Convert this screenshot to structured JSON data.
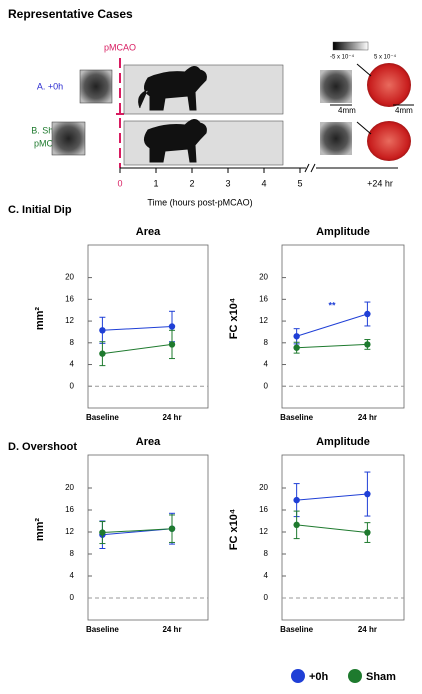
{
  "heading": "Representative Cases",
  "cases": {
    "marker": "pMCAO",
    "row_a": "A. +0h",
    "row_b": [
      "B. Sham-",
      "pMCAO"
    ],
    "colorbar": [
      "-5 x 10⁻⁴",
      "5 x 10⁻⁴"
    ],
    "scale_left": "4mm",
    "scale_right": "4mm",
    "timeline": {
      "ticks": [
        "0",
        "1",
        "2",
        "3",
        "4",
        "5",
        "+24 hr"
      ],
      "label": "Time (hours post-pMCAO)"
    }
  },
  "sections": [
    "C. Initial Dip",
    "D. Overshoot"
  ],
  "chart_data": [
    {
      "type": "line",
      "title": "Area",
      "ylabel": "mm²",
      "categories": [
        "Baseline",
        "24 hr"
      ],
      "ylim": [
        -4,
        26
      ],
      "yticks": [
        0,
        4,
        8,
        12,
        16,
        20
      ],
      "series": [
        {
          "name": "+0h",
          "color": "#1f3fd6",
          "values": [
            10.3,
            11.0
          ],
          "errors": [
            2.4,
            2.8
          ]
        },
        {
          "name": "Sham",
          "color": "#1e7a2e",
          "values": [
            6.0,
            7.7
          ],
          "errors": [
            2.2,
            2.6
          ]
        }
      ]
    },
    {
      "type": "line",
      "title": "Amplitude",
      "ylabel": "FC x10⁴",
      "categories": [
        "Baseline",
        "24 hr"
      ],
      "ylim": [
        -4,
        26
      ],
      "yticks": [
        0,
        4,
        8,
        12,
        16,
        20
      ],
      "annotation": "**",
      "series": [
        {
          "color": "#1f3fd6",
          "values": [
            9.2,
            13.3
          ],
          "errors": [
            1.4,
            2.2
          ]
        },
        {
          "color": "#1e7a2e",
          "values": [
            7.1,
            7.7
          ],
          "errors": [
            1.0,
            0.9
          ]
        }
      ]
    },
    {
      "type": "line",
      "title": "Area",
      "ylabel": "mm²",
      "categories": [
        "Baseline",
        "24 hr"
      ],
      "ylim": [
        -4,
        26
      ],
      "yticks": [
        0,
        4,
        8,
        12,
        16,
        20
      ],
      "series": [
        {
          "color": "#1f3fd6",
          "values": [
            11.5,
            12.6
          ],
          "errors": [
            2.5,
            2.8
          ]
        },
        {
          "color": "#1e7a2e",
          "values": [
            11.9,
            12.6
          ],
          "errors": [
            2.0,
            2.5
          ]
        }
      ]
    },
    {
      "type": "line",
      "title": "Amplitude",
      "ylabel": "FC x10⁴",
      "categories": [
        "Baseline",
        "24 hr"
      ],
      "ylim": [
        -4,
        26
      ],
      "yticks": [
        0,
        4,
        8,
        12,
        16,
        20
      ],
      "series": [
        {
          "color": "#1f3fd6",
          "values": [
            17.8,
            18.9
          ],
          "errors": [
            3.0,
            4.0
          ]
        },
        {
          "color": "#1e7a2e",
          "values": [
            13.3,
            11.9
          ],
          "errors": [
            2.5,
            1.8
          ]
        }
      ]
    }
  ]
}
